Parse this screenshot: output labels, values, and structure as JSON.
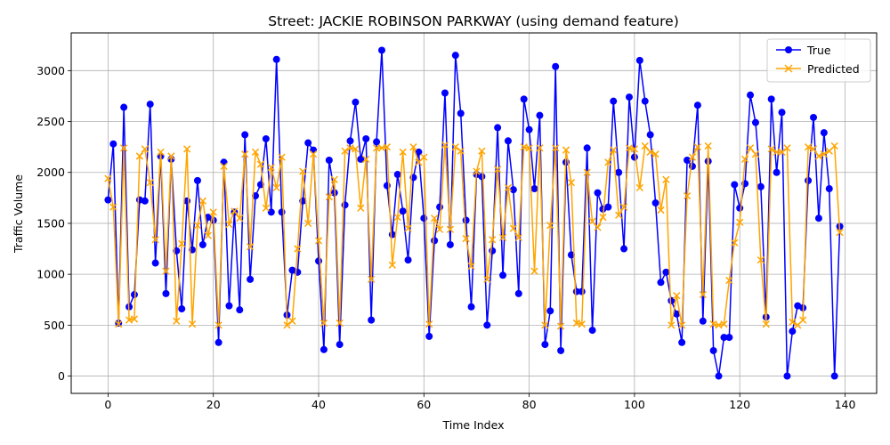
{
  "chart_data": {
    "type": "line",
    "title": "Street: JACKIE ROBINSON PARKWAY (using demand feature)",
    "xlabel": "Time Index",
    "ylabel": "Traffic Volume",
    "xlim": [
      -7,
      146
    ],
    "ylim": [
      -170,
      3370
    ],
    "xticks": [
      0,
      20,
      40,
      60,
      80,
      100,
      120,
      140
    ],
    "yticks": [
      0,
      500,
      1000,
      1500,
      2000,
      2500,
      3000
    ],
    "grid": true,
    "legend_position": "top-right",
    "series": [
      {
        "name": "True",
        "color": "#0000ff",
        "marker": "circle",
        "values": [
          1730,
          2280,
          520,
          2640,
          680,
          800,
          1730,
          1720,
          2670,
          1110,
          2160,
          810,
          2130,
          1230,
          660,
          1720,
          1240,
          1920,
          1290,
          1560,
          1530,
          330,
          2100,
          690,
          1610,
          650,
          2370,
          950,
          1770,
          1880,
          2330,
          1610,
          3110,
          1610,
          600,
          1040,
          1020,
          1720,
          2290,
          2220,
          1130,
          260,
          2120,
          1800,
          310,
          1680,
          2310,
          2690,
          2130,
          2330,
          550,
          2300,
          3200,
          1870,
          1390,
          1980,
          1620,
          1140,
          1950,
          2200,
          1550,
          390,
          1330,
          1660,
          2780,
          1290,
          3150,
          2580,
          1530,
          680,
          1980,
          1960,
          500,
          1230,
          2440,
          990,
          2310,
          1830,
          810,
          2720,
          2420,
          1840,
          2560,
          310,
          640,
          3040,
          250,
          2100,
          1190,
          830,
          830,
          2240,
          450,
          1800,
          1640,
          1660,
          2700,
          2000,
          1250,
          2740,
          2150,
          3100,
          2700,
          2370,
          1700,
          920,
          1020,
          740,
          610,
          330,
          2120,
          2060,
          2660,
          540,
          2110,
          250,
          0,
          380,
          380,
          1880,
          1650,
          1890,
          2760,
          2490,
          1860,
          580,
          2720,
          2000,
          2590,
          0,
          440,
          690,
          670,
          1920,
          2540,
          1550,
          2390,
          1840,
          0,
          1470
        ]
      },
      {
        "name": "Predicted",
        "color": "#ffa500",
        "marker": "x",
        "values": [
          1940,
          1660,
          510,
          2240,
          550,
          560,
          2160,
          2230,
          1900,
          1340,
          2200,
          1030,
          2160,
          540,
          1300,
          2230,
          510,
          1480,
          1720,
          1380,
          1610,
          500,
          2060,
          1490,
          1620,
          1550,
          2180,
          1270,
          2200,
          2080,
          1650,
          2050,
          1850,
          2150,
          500,
          540,
          1250,
          2010,
          1500,
          2180,
          1330,
          520,
          1760,
          1930,
          520,
          2210,
          2240,
          2230,
          1650,
          2130,
          950,
          2240,
          2240,
          2250,
          1090,
          1560,
          2200,
          1450,
          2250,
          2100,
          2150,
          510,
          1550,
          1440,
          2270,
          1440,
          2250,
          2210,
          1350,
          1080,
          2010,
          2210,
          950,
          1340,
          2030,
          1360,
          1850,
          1450,
          1360,
          2250,
          2240,
          1030,
          2240,
          500,
          1480,
          2240,
          490,
          2220,
          1900,
          520,
          510,
          2000,
          1520,
          1460,
          1560,
          2100,
          2220,
          1580,
          1660,
          2240,
          2230,
          1850,
          2260,
          2200,
          2180,
          1630,
          1930,
          500,
          790,
          500,
          1770,
          2150,
          2250,
          800,
          2260,
          510,
          500,
          510,
          940,
          1310,
          1510,
          2130,
          2240,
          2180,
          1140,
          510,
          2230,
          2200,
          2200,
          2240,
          530,
          500,
          550,
          2250,
          2230,
          2160,
          2180,
          2210,
          2260,
          1410
        ]
      }
    ]
  }
}
